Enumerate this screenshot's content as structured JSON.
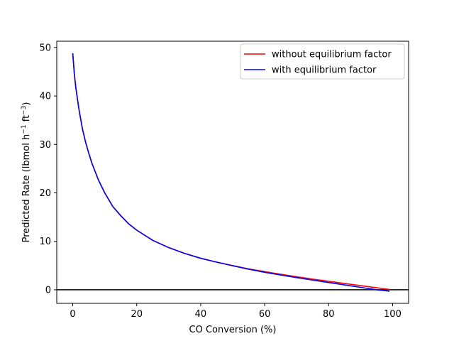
{
  "chart_data": {
    "type": "line",
    "title": "",
    "xlabel": "CO Conversion (%)",
    "ylabel": "Predicted Rate (lbmol h",
    "ylabel_exp1": "−1",
    "ylabel_mid": " ft",
    "ylabel_exp2": "−3",
    "ylabel_end": ")",
    "xlim": [
      -5,
      105
    ],
    "ylim": [
      -2.8,
      51.3
    ],
    "xticks": [
      0,
      20,
      40,
      60,
      80,
      100
    ],
    "yticks": [
      0,
      10,
      20,
      30,
      40,
      50
    ],
    "grid": false,
    "legend_position": "top-right",
    "reference_line": {
      "y": 0,
      "color": "#000000"
    },
    "x": [
      0,
      0.5,
      1,
      2,
      3,
      4,
      5,
      6,
      8,
      10,
      12.5,
      15,
      17.5,
      20,
      25,
      30,
      35,
      40,
      45,
      50,
      55,
      60,
      65,
      70,
      75,
      80,
      85,
      90,
      95,
      98,
      99
    ],
    "series": [
      {
        "name": "without equilibrium factor",
        "color": "#ff0000",
        "values": [
          48.8,
          44.5,
          41.5,
          37.0,
          33.3,
          30.5,
          28.2,
          26.1,
          22.7,
          20.0,
          17.2,
          15.3,
          13.6,
          12.3,
          10.2,
          8.7,
          7.5,
          6.5,
          5.7,
          5.0,
          4.3,
          3.75,
          3.2,
          2.7,
          2.2,
          1.75,
          1.3,
          0.85,
          0.42,
          0.15,
          0.07
        ]
      },
      {
        "name": "with equilibrium factor",
        "color": "#0000ff",
        "values": [
          48.8,
          44.5,
          41.5,
          37.0,
          33.3,
          30.5,
          28.2,
          26.1,
          22.7,
          20.0,
          17.2,
          15.3,
          13.6,
          12.3,
          10.2,
          8.7,
          7.5,
          6.5,
          5.7,
          4.95,
          4.25,
          3.6,
          3.05,
          2.5,
          2.0,
          1.5,
          1.0,
          0.5,
          0.0,
          -0.2,
          -0.3
        ]
      }
    ]
  }
}
